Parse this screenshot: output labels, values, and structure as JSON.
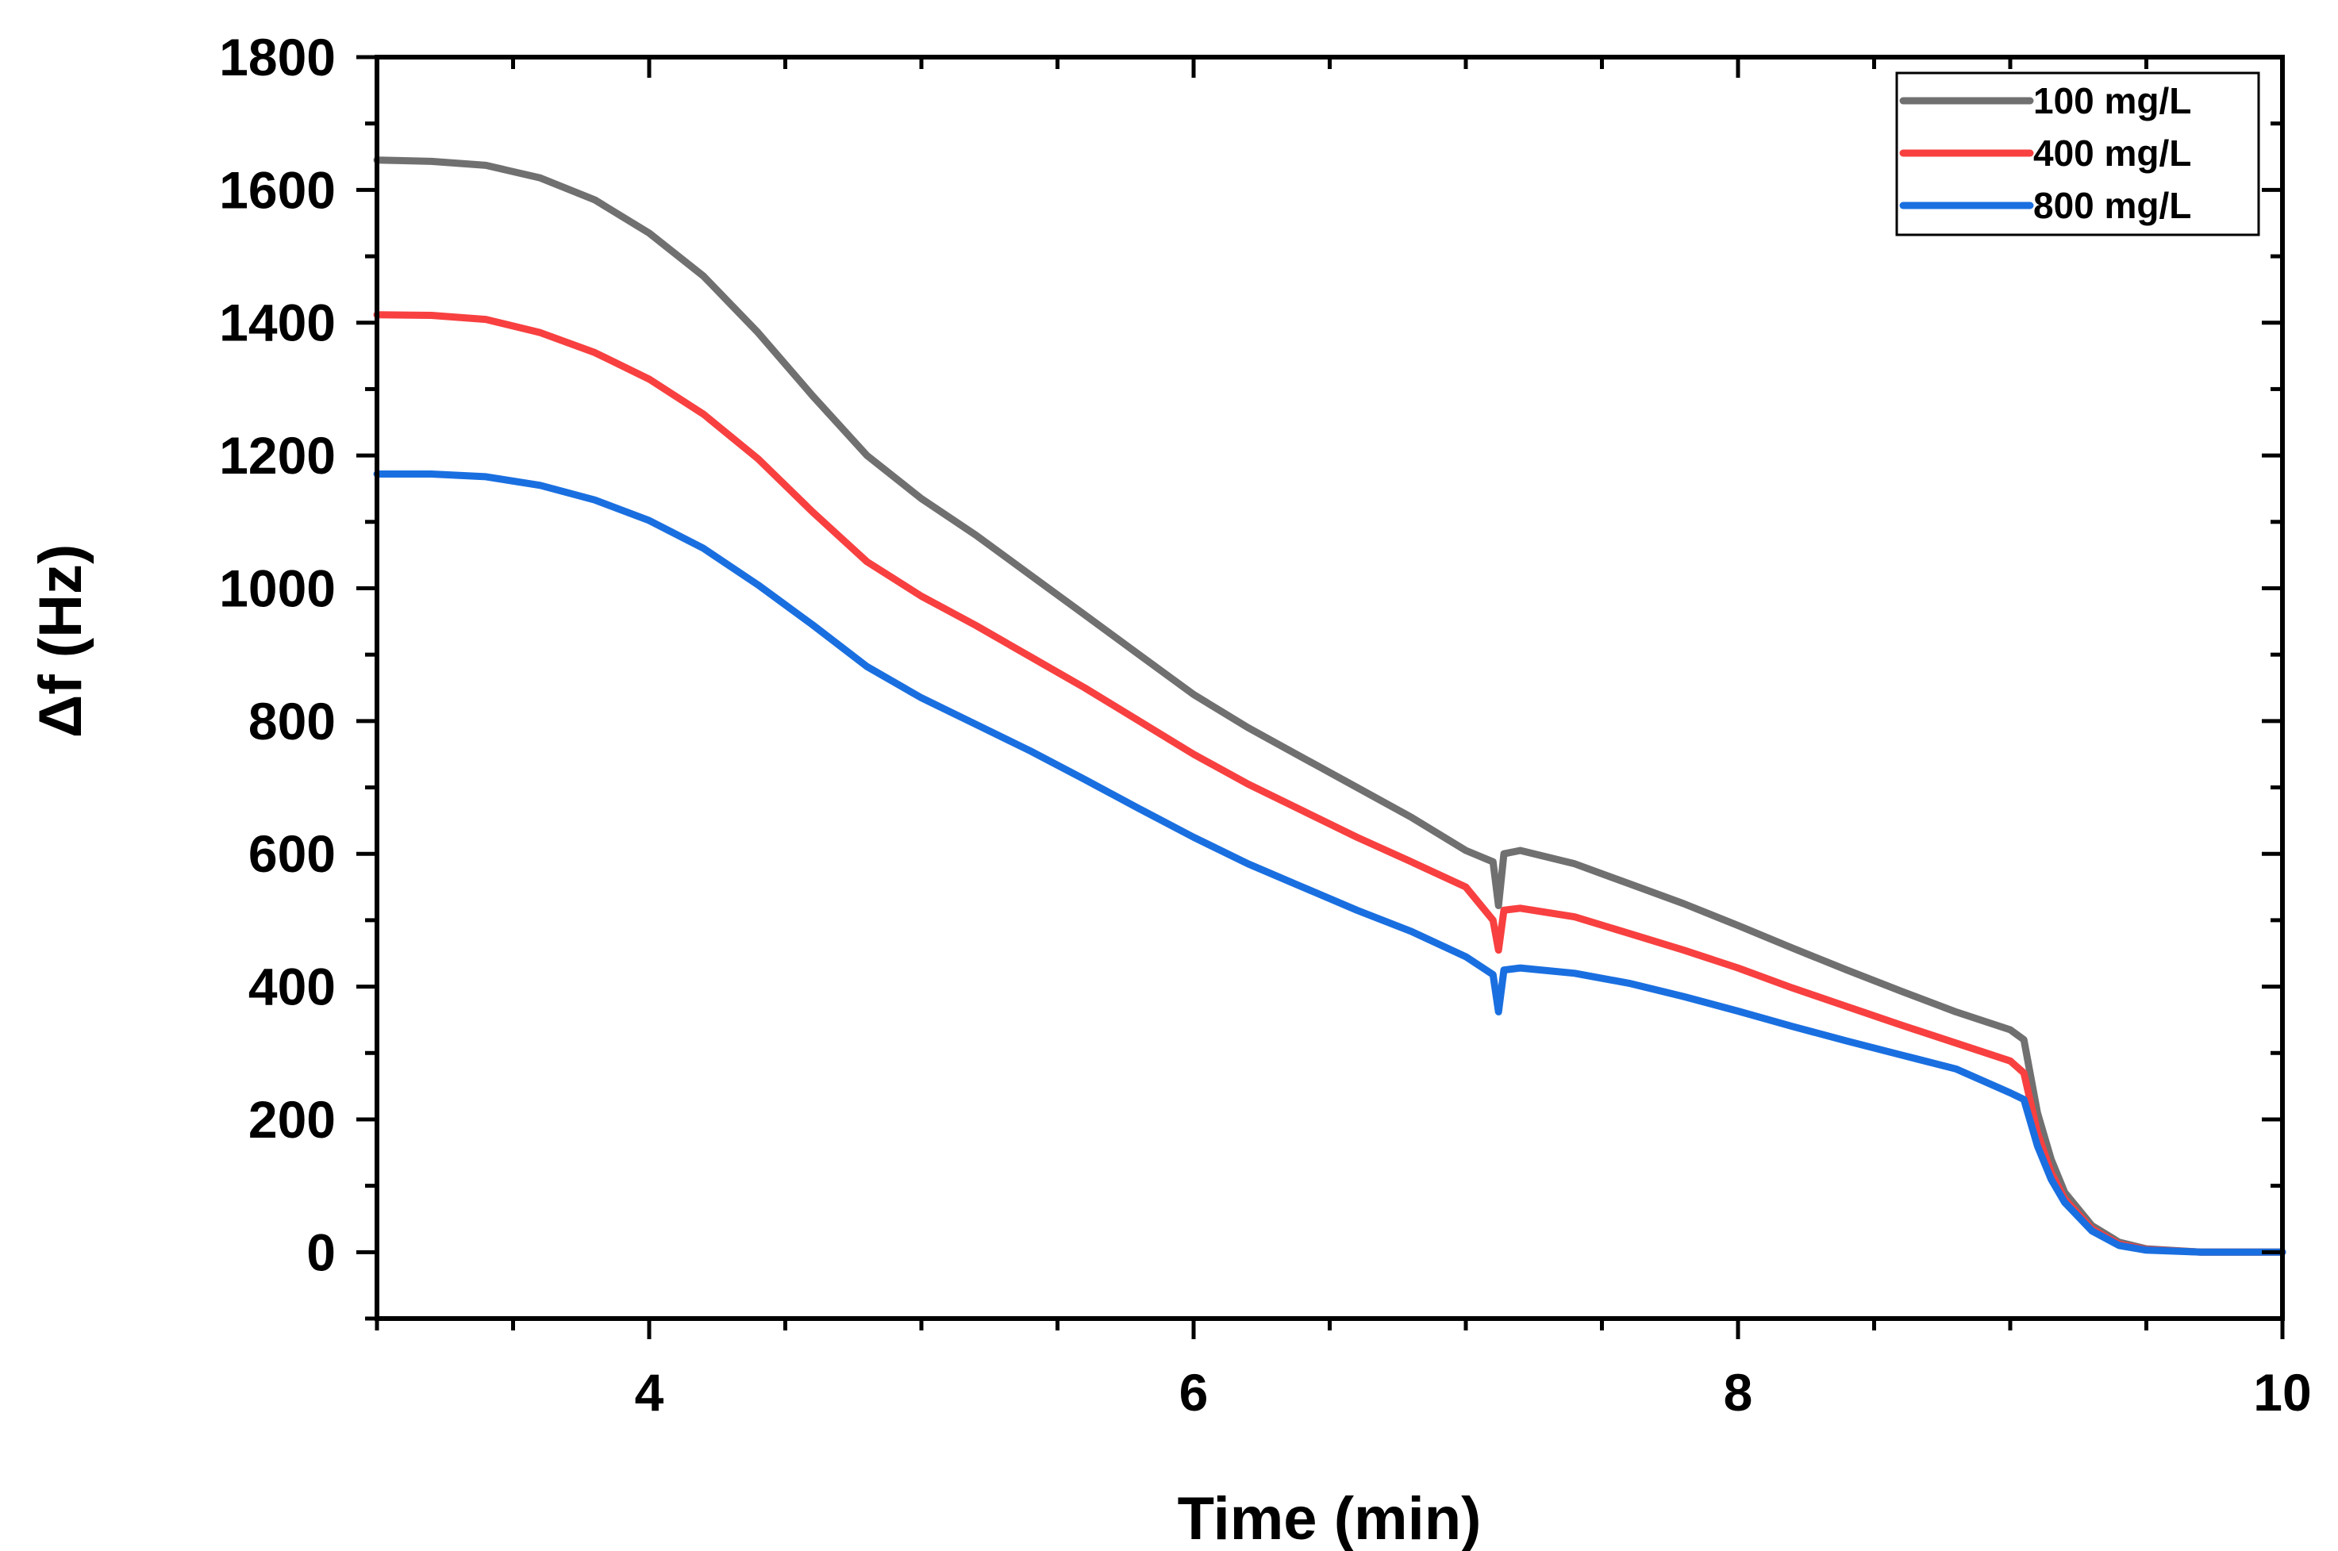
{
  "chart_data": {
    "type": "line",
    "title": "",
    "xlabel": "Time (min)",
    "ylabel": "Δf (Hz)",
    "xlim": [
      3,
      10
    ],
    "ylim": [
      -100,
      1800
    ],
    "xticks": [
      4,
      6,
      8,
      10
    ],
    "xtick_labels": [
      "4",
      "6",
      "8",
      "10"
    ],
    "yticks": [
      0,
      200,
      400,
      600,
      800,
      1000,
      1200,
      1400,
      1600,
      1800
    ],
    "ytick_labels": [
      "0",
      "200",
      "400",
      "600",
      "800",
      "1000",
      "1200",
      "1400",
      "1600",
      "1800"
    ],
    "legend_position": "top-right",
    "series": [
      {
        "name": "100 mg/L",
        "color": "#707070",
        "points": [
          [
            3.0,
            1645
          ],
          [
            3.2,
            1643
          ],
          [
            3.4,
            1637
          ],
          [
            3.6,
            1618
          ],
          [
            3.8,
            1585
          ],
          [
            4.0,
            1535
          ],
          [
            4.2,
            1470
          ],
          [
            4.4,
            1385
          ],
          [
            4.6,
            1290
          ],
          [
            4.8,
            1200
          ],
          [
            5.0,
            1135
          ],
          [
            5.2,
            1080
          ],
          [
            5.4,
            1020
          ],
          [
            5.6,
            960
          ],
          [
            5.8,
            900
          ],
          [
            6.0,
            840
          ],
          [
            6.2,
            790
          ],
          [
            6.4,
            745
          ],
          [
            6.6,
            700
          ],
          [
            6.8,
            655
          ],
          [
            7.0,
            605
          ],
          [
            7.1,
            588
          ],
          [
            7.12,
            522
          ],
          [
            7.14,
            600
          ],
          [
            7.2,
            605
          ],
          [
            7.4,
            585
          ],
          [
            7.6,
            555
          ],
          [
            7.8,
            525
          ],
          [
            8.0,
            492
          ],
          [
            8.2,
            458
          ],
          [
            8.4,
            425
          ],
          [
            8.6,
            393
          ],
          [
            8.8,
            362
          ],
          [
            9.0,
            335
          ],
          [
            9.05,
            320
          ],
          [
            9.1,
            210
          ],
          [
            9.15,
            140
          ],
          [
            9.2,
            90
          ],
          [
            9.3,
            40
          ],
          [
            9.4,
            15
          ],
          [
            9.5,
            5
          ],
          [
            9.7,
            0
          ],
          [
            10.0,
            0
          ]
        ]
      },
      {
        "name": "400 mg/L",
        "color": "#f84040",
        "points": [
          [
            3.0,
            1412
          ],
          [
            3.2,
            1411
          ],
          [
            3.4,
            1405
          ],
          [
            3.6,
            1385
          ],
          [
            3.8,
            1355
          ],
          [
            4.0,
            1315
          ],
          [
            4.2,
            1262
          ],
          [
            4.4,
            1195
          ],
          [
            4.6,
            1115
          ],
          [
            4.8,
            1040
          ],
          [
            5.0,
            988
          ],
          [
            5.2,
            944
          ],
          [
            5.4,
            897
          ],
          [
            5.6,
            850
          ],
          [
            5.8,
            800
          ],
          [
            6.0,
            750
          ],
          [
            6.2,
            705
          ],
          [
            6.4,
            665
          ],
          [
            6.6,
            625
          ],
          [
            6.8,
            588
          ],
          [
            7.0,
            550
          ],
          [
            7.1,
            500
          ],
          [
            7.12,
            455
          ],
          [
            7.14,
            515
          ],
          [
            7.2,
            518
          ],
          [
            7.4,
            505
          ],
          [
            7.6,
            480
          ],
          [
            7.8,
            455
          ],
          [
            8.0,
            428
          ],
          [
            8.2,
            398
          ],
          [
            8.4,
            370
          ],
          [
            8.6,
            342
          ],
          [
            8.8,
            315
          ],
          [
            9.0,
            288
          ],
          [
            9.05,
            270
          ],
          [
            9.1,
            180
          ],
          [
            9.15,
            120
          ],
          [
            9.2,
            80
          ],
          [
            9.3,
            35
          ],
          [
            9.4,
            12
          ],
          [
            9.5,
            4
          ],
          [
            9.7,
            0
          ],
          [
            10.0,
            0
          ]
        ]
      },
      {
        "name": "800 mg/L",
        "color": "#1a6fe0",
        "points": [
          [
            3.0,
            1172
          ],
          [
            3.2,
            1172
          ],
          [
            3.4,
            1168
          ],
          [
            3.6,
            1155
          ],
          [
            3.8,
            1133
          ],
          [
            4.0,
            1102
          ],
          [
            4.2,
            1060
          ],
          [
            4.4,
            1005
          ],
          [
            4.6,
            945
          ],
          [
            4.8,
            882
          ],
          [
            5.0,
            835
          ],
          [
            5.2,
            795
          ],
          [
            5.4,
            755
          ],
          [
            5.6,
            712
          ],
          [
            5.8,
            668
          ],
          [
            6.0,
            625
          ],
          [
            6.2,
            585
          ],
          [
            6.4,
            550
          ],
          [
            6.6,
            515
          ],
          [
            6.8,
            483
          ],
          [
            7.0,
            445
          ],
          [
            7.1,
            418
          ],
          [
            7.12,
            362
          ],
          [
            7.14,
            425
          ],
          [
            7.2,
            428
          ],
          [
            7.4,
            420
          ],
          [
            7.6,
            405
          ],
          [
            7.8,
            385
          ],
          [
            8.0,
            363
          ],
          [
            8.2,
            340
          ],
          [
            8.4,
            318
          ],
          [
            8.6,
            297
          ],
          [
            8.8,
            276
          ],
          [
            9.0,
            240
          ],
          [
            9.05,
            230
          ],
          [
            9.1,
            160
          ],
          [
            9.15,
            110
          ],
          [
            9.2,
            75
          ],
          [
            9.3,
            32
          ],
          [
            9.4,
            10
          ],
          [
            9.5,
            3
          ],
          [
            9.7,
            0
          ],
          [
            10.0,
            0
          ]
        ]
      }
    ]
  }
}
